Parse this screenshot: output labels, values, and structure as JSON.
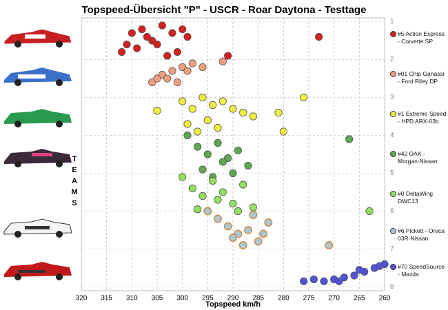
{
  "chart_data": {
    "type": "scatter",
    "title": "Topspeed-Übersicht \"P\" - USCR - Roar Daytona - Testtage",
    "x_label": "Topspeed km/h",
    "y_label": "TEAMS",
    "xlim": [
      320,
      260
    ],
    "xticks": [
      320,
      315,
      310,
      305,
      300,
      295,
      290,
      285,
      280,
      275,
      270,
      265,
      260
    ],
    "ylim": [
      0.9,
      8.1
    ],
    "yticks": [
      1,
      2,
      3,
      4,
      5,
      6,
      7,
      8
    ],
    "grid": true,
    "legend": "right",
    "series": [
      {
        "name": "#5 Action Express - Corvette SP",
        "color": "#d42020",
        "x": [
          312,
          310,
          308,
          306,
          304,
          302,
          300,
          309,
          305,
          301,
          307,
          303,
          299,
          311,
          273,
          291
        ],
        "values": [
          1.8,
          1.3,
          1.2,
          1.5,
          1.1,
          1.3,
          1.2,
          1.7,
          1.6,
          1.8,
          1.4,
          1.9,
          1.4,
          1.6,
          1.4,
          1.9
        ]
      },
      {
        "name": "#01 Chip Ganassi - Ford Riley DP",
        "color": "#f0a080",
        "x": [
          306,
          304,
          302,
          300,
          298,
          296,
          303,
          301,
          299,
          305,
          292
        ],
        "values": [
          2.6,
          2.4,
          2.3,
          2.2,
          2.1,
          2.2,
          2.5,
          2.6,
          2.3,
          2.5,
          2.05
        ]
      },
      {
        "name": "#1 Extreme Speed - HPD ARX-03b",
        "color": "#eef040",
        "x": [
          300,
          298,
          296,
          294,
          292,
          290,
          288,
          286,
          299,
          297,
          295,
          293,
          305,
          281,
          280,
          276
        ],
        "values": [
          3.1,
          3.3,
          3.0,
          3.2,
          3.1,
          3.3,
          3.4,
          3.5,
          3.7,
          3.9,
          3.6,
          3.8,
          3.35,
          3.4,
          3.9,
          3.0
        ]
      },
      {
        "name": "#42 OAK - Morgan-Nissan",
        "color": "#5ea84e",
        "x": [
          299,
          297,
          295,
          293,
          291,
          289,
          287,
          296,
          294,
          292,
          290,
          267
        ],
        "values": [
          4.0,
          4.3,
          4.5,
          4.2,
          4.6,
          4.4,
          4.8,
          4.9,
          5.1,
          4.7,
          5.0,
          4.1
        ]
      },
      {
        "name": "#0 DeltaWing DWC13",
        "color": "#92e060",
        "x": [
          300,
          298,
          296,
          294,
          292,
          290,
          288,
          286,
          297,
          293,
          289,
          263
        ],
        "values": [
          5.1,
          5.4,
          5.6,
          5.2,
          5.5,
          5.8,
          5.3,
          5.9,
          5.95,
          5.7,
          6.0,
          6.0
        ]
      },
      {
        "name": "#6 Pickett - Oreca 03R-Nissan",
        "color": "#a8c8d8",
        "x": [
          295,
          293,
          291,
          289,
          287,
          285,
          283,
          290,
          288,
          286,
          284,
          271
        ],
        "values": [
          6.0,
          6.2,
          6.4,
          6.6,
          6.5,
          6.8,
          6.3,
          6.7,
          6.9,
          6.1,
          6.6,
          6.9
        ]
      },
      {
        "name": "#70 SpeedSource - Mazda",
        "color": "#5252d8",
        "x": [
          276,
          274,
          272,
          270,
          268,
          266,
          264,
          262,
          260,
          269,
          265,
          261
        ],
        "values": [
          7.85,
          7.8,
          7.85,
          7.8,
          7.75,
          7.7,
          7.6,
          7.5,
          7.4,
          7.85,
          7.55,
          7.45
        ]
      }
    ]
  }
}
